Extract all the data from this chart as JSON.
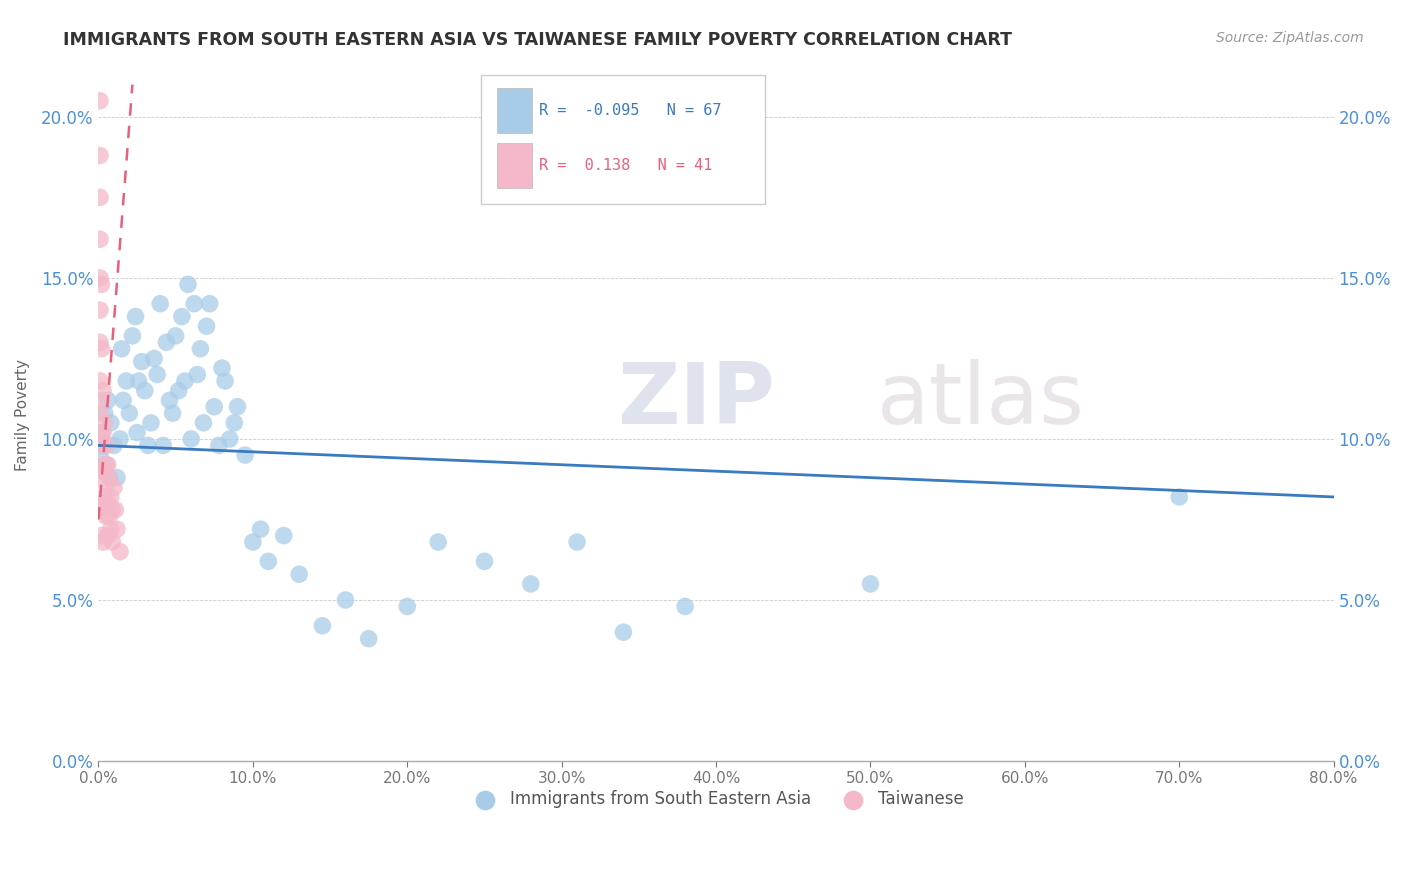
{
  "title": "IMMIGRANTS FROM SOUTH EASTERN ASIA VS TAIWANESE FAMILY POVERTY CORRELATION CHART",
  "source": "Source: ZipAtlas.com",
  "ylabel": "Family Poverty",
  "watermark_zip": "ZIP",
  "watermark_atlas": "atlas",
  "blue_R": -0.095,
  "blue_N": 67,
  "pink_R": 0.138,
  "pink_N": 41,
  "blue_color": "#a8cce8",
  "pink_color": "#f4b8c8",
  "trend_blue_color": "#3a7abf",
  "trend_pink_color": "#e8607a",
  "blue_scatter_x": [
    0.001,
    0.002,
    0.003,
    0.004,
    0.005,
    0.006,
    0.007,
    0.008,
    0.01,
    0.012,
    0.014,
    0.015,
    0.016,
    0.018,
    0.02,
    0.022,
    0.024,
    0.025,
    0.026,
    0.028,
    0.03,
    0.032,
    0.034,
    0.036,
    0.038,
    0.04,
    0.042,
    0.044,
    0.046,
    0.048,
    0.05,
    0.052,
    0.054,
    0.056,
    0.058,
    0.06,
    0.062,
    0.064,
    0.066,
    0.068,
    0.07,
    0.072,
    0.075,
    0.078,
    0.08,
    0.082,
    0.085,
    0.088,
    0.09,
    0.095,
    0.1,
    0.105,
    0.11,
    0.12,
    0.13,
    0.145,
    0.16,
    0.175,
    0.2,
    0.22,
    0.25,
    0.28,
    0.31,
    0.34,
    0.38,
    0.5,
    0.7
  ],
  "blue_scatter_y": [
    0.095,
    0.102,
    0.098,
    0.108,
    0.092,
    0.112,
    0.088,
    0.105,
    0.098,
    0.088,
    0.1,
    0.128,
    0.112,
    0.118,
    0.108,
    0.132,
    0.138,
    0.102,
    0.118,
    0.124,
    0.115,
    0.098,
    0.105,
    0.125,
    0.12,
    0.142,
    0.098,
    0.13,
    0.112,
    0.108,
    0.132,
    0.115,
    0.138,
    0.118,
    0.148,
    0.1,
    0.142,
    0.12,
    0.128,
    0.105,
    0.135,
    0.142,
    0.11,
    0.098,
    0.122,
    0.118,
    0.1,
    0.105,
    0.11,
    0.095,
    0.068,
    0.072,
    0.062,
    0.07,
    0.058,
    0.042,
    0.05,
    0.038,
    0.048,
    0.068,
    0.062,
    0.055,
    0.068,
    0.04,
    0.048,
    0.055,
    0.082
  ],
  "pink_scatter_x": [
    0.001,
    0.001,
    0.001,
    0.001,
    0.001,
    0.001,
    0.001,
    0.001,
    0.001,
    0.001,
    0.002,
    0.002,
    0.002,
    0.002,
    0.002,
    0.002,
    0.002,
    0.003,
    0.003,
    0.003,
    0.003,
    0.003,
    0.004,
    0.004,
    0.004,
    0.005,
    0.005,
    0.005,
    0.006,
    0.006,
    0.006,
    0.007,
    0.007,
    0.008,
    0.008,
    0.009,
    0.009,
    0.01,
    0.011,
    0.012,
    0.014
  ],
  "pink_scatter_y": [
    0.205,
    0.188,
    0.175,
    0.162,
    0.15,
    0.14,
    0.13,
    0.118,
    0.108,
    0.098,
    0.148,
    0.128,
    0.112,
    0.1,
    0.09,
    0.08,
    0.07,
    0.115,
    0.102,
    0.09,
    0.078,
    0.068,
    0.105,
    0.092,
    0.082,
    0.098,
    0.086,
    0.076,
    0.092,
    0.08,
    0.07,
    0.088,
    0.076,
    0.082,
    0.072,
    0.078,
    0.068,
    0.085,
    0.078,
    0.072,
    0.065
  ],
  "x_min": 0.0,
  "x_max": 0.8,
  "y_min": 0.0,
  "y_max": 0.215,
  "yticks": [
    0.0,
    0.05,
    0.1,
    0.15,
    0.2
  ],
  "ytick_labels": [
    "0.0%",
    "5.0%",
    "10.0%",
    "15.0%",
    "20.0%"
  ],
  "xticks": [
    0.0,
    0.1,
    0.2,
    0.3,
    0.4,
    0.5,
    0.6,
    0.7,
    0.8
  ],
  "xtick_labels": [
    "0.0%",
    "10.0%",
    "20.0%",
    "30.0%",
    "40.0%",
    "50.0%",
    "60.0%",
    "70.0%",
    "80.0%"
  ],
  "legend_labels": [
    "Immigrants from South Eastern Asia",
    "Taiwanese"
  ]
}
